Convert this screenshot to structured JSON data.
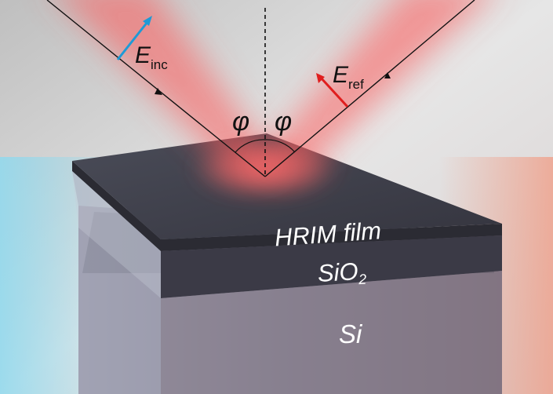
{
  "labels": {
    "incident_field": "E",
    "incident_sub": "inc",
    "reflected_field": "E",
    "reflected_sub": "ref",
    "angle_left": "φ",
    "angle_right": "φ",
    "film_layer": "HRIM film",
    "oxide_layer": "SiO",
    "oxide_sub": "2",
    "substrate_layer": "Si"
  },
  "colors": {
    "beam": "#ff5a5a",
    "incident_arrow": "#1e9ad6",
    "reflected_arrow": "#e01e1e",
    "film_top": "#3d3f4a",
    "oxide": "#3a3a45",
    "substrate": "#7a7684"
  }
}
